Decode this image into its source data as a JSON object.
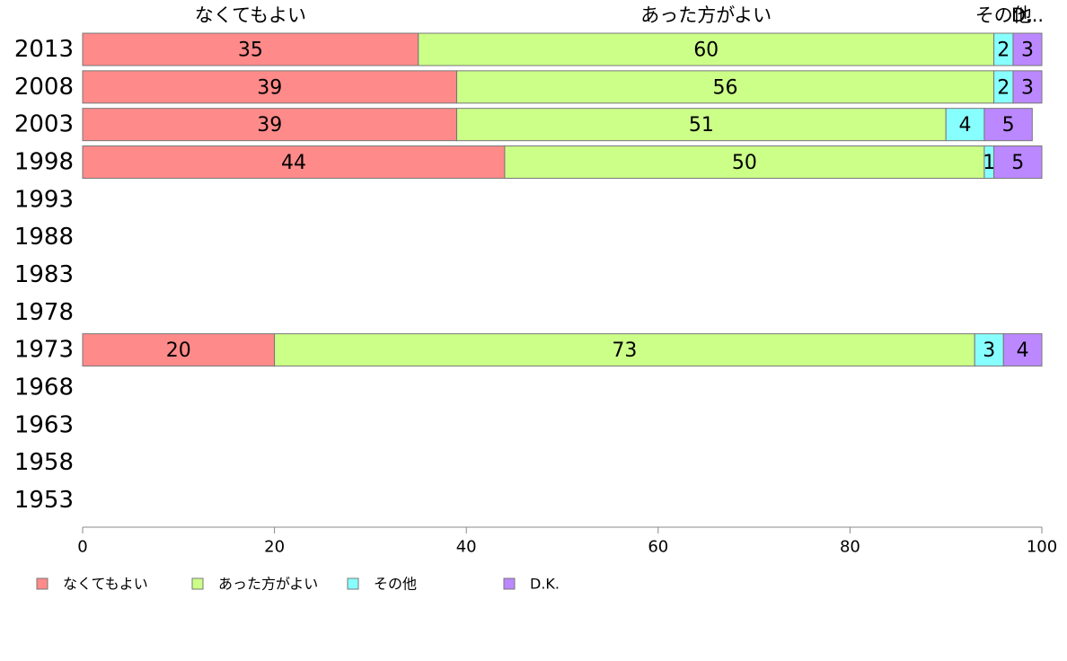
{
  "chart_data": {
    "type": "bar",
    "orientation": "horizontal",
    "stacked": true,
    "categories": [
      "2013",
      "2008",
      "2003",
      "1998",
      "1993",
      "1988",
      "1983",
      "1978",
      "1973",
      "1968",
      "1963",
      "1958",
      "1953"
    ],
    "series": [
      {
        "name": "なくてもよい",
        "color": "#ff8a8a",
        "values": [
          35,
          39,
          39,
          44,
          null,
          null,
          null,
          null,
          20,
          null,
          null,
          null,
          null
        ]
      },
      {
        "name": "あった方がよい",
        "color": "#ccff88",
        "values": [
          60,
          56,
          51,
          50,
          null,
          null,
          null,
          null,
          73,
          null,
          null,
          null,
          null
        ]
      },
      {
        "name": "その他",
        "color": "#88ffff",
        "values": [
          2,
          2,
          4,
          1,
          null,
          null,
          null,
          null,
          3,
          null,
          null,
          null,
          null
        ]
      },
      {
        "name": "D.K.",
        "color": "#bb88ff",
        "values": [
          3,
          3,
          5,
          5,
          null,
          null,
          null,
          null,
          4,
          null,
          null,
          null,
          null
        ]
      }
    ],
    "top_labels": [
      "なくてもよい",
      "あった方がよい",
      "その他",
      "D..."
    ],
    "xlim": [
      0,
      100
    ],
    "xticks": [
      "0",
      "20",
      "40",
      "60",
      "80",
      "100"
    ],
    "legend_placement": "bottom",
    "grid": false
  }
}
